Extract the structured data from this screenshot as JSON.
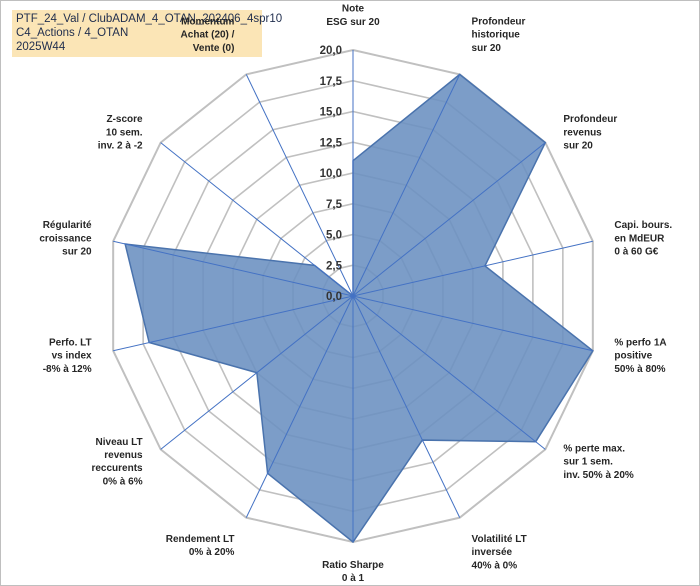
{
  "title": {
    "line1": "PTF_24_Val / ClubADAM_4_OTAN_202406_4spr10",
    "line2": "C4_Actions / 4_OTAN",
    "line3": "2025W44"
  },
  "colors": {
    "fill": "#6a8fc0",
    "stroke": "#4a73ad",
    "spoke": "#4472c4",
    "grid": "#c0c0c0",
    "title_bg": "#fbe5b6"
  },
  "chart_data": {
    "type": "radar",
    "title": "PTF_24_Val / ClubADAM_4_OTAN_202406_4spr10",
    "range": [
      0,
      20
    ],
    "ticks": [
      "0,0",
      "2,5",
      "5,0",
      "7,5",
      "10,0",
      "12,5",
      "15,0",
      "17,5",
      "20,0"
    ],
    "axes": [
      [
        "Note",
        "ESG sur 20"
      ],
      [
        "Profondeur",
        "historique",
        "sur 20"
      ],
      [
        "Profondeur",
        "revenus",
        "sur 20"
      ],
      [
        "Capi. bours.",
        "en MdEUR",
        "0 à 60 G€"
      ],
      [
        "% perfo 1A",
        "positive",
        "50% à 80%"
      ],
      [
        "% perte max.",
        "sur 1 sem.",
        "inv. 50% à 20%"
      ],
      [
        "Volatilité LT",
        "inversée",
        "40% à 0%"
      ],
      [
        "Ratio Sharpe",
        "0 à 1"
      ],
      [
        "Rendement LT",
        "0% à 20%"
      ],
      [
        "Niveau LT",
        "revenus",
        "reccurents",
        "0% à 6%"
      ],
      [
        "Perfo. LT",
        "vs index",
        "-8% à 12%"
      ],
      [
        "Régularité",
        "croissance",
        "sur 20"
      ],
      [
        "Z-score",
        "10 sem.",
        "inv. 2 à -2"
      ],
      [
        "Momentum",
        "Achat (20) /",
        "Vente (0)"
      ]
    ],
    "series": [
      {
        "name": "PTF_24_Val",
        "values": [
          11,
          20,
          20,
          11,
          20,
          19,
          13,
          20,
          16,
          10,
          17,
          19,
          4,
          0
        ]
      }
    ]
  }
}
